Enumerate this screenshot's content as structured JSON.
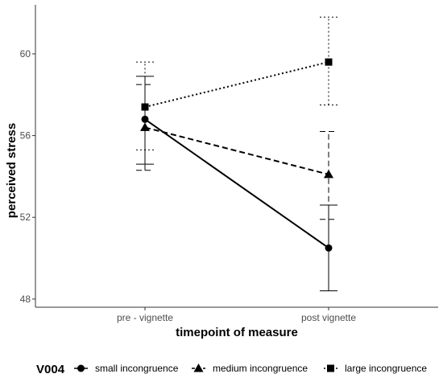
{
  "chart_data": {
    "type": "line",
    "xlabel": "timepoint of measure",
    "ylabel": "perceived stress",
    "categories": [
      "pre - vignette",
      "post vignette"
    ],
    "ylim": [
      47.6,
      62.4
    ],
    "yticks": [
      48,
      52,
      56,
      60
    ],
    "grid": false,
    "legend": {
      "title": "V004",
      "position": "bottom"
    },
    "series": [
      {
        "name": "small incongruence",
        "marker": "circle",
        "linestyle": "solid",
        "values": [
          56.8,
          50.5
        ],
        "error_low": [
          54.6,
          48.4
        ],
        "error_high": [
          58.9,
          52.6
        ]
      },
      {
        "name": "medium incongruence",
        "marker": "triangle",
        "linestyle": "dashed",
        "values": [
          56.4,
          54.1
        ],
        "error_low": [
          54.3,
          51.9
        ],
        "error_high": [
          58.5,
          56.2
        ]
      },
      {
        "name": "large incongruence",
        "marker": "square",
        "linestyle": "dotted",
        "values": [
          57.4,
          59.6
        ],
        "error_low": [
          55.3,
          57.5
        ],
        "error_high": [
          59.6,
          61.8
        ]
      }
    ]
  }
}
